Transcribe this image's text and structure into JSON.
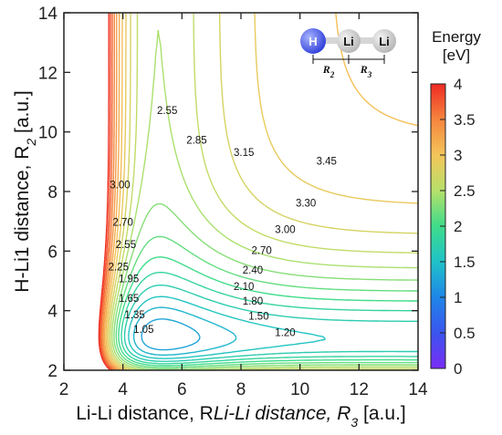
{
  "chart_data": {
    "type": "contour",
    "xlabel": "Li-Li distance, R",
    "xlabel_sub": "3",
    "xlabel_unit": " [a.u.]",
    "ylabel": "H-Li1 distance, R",
    "ylabel_sub": "2",
    "ylabel_unit": " [a.u.]",
    "xlim": [
      2,
      14
    ],
    "ylim": [
      2,
      14
    ],
    "x_ticks": [
      "2",
      "4",
      "6",
      "8",
      "10",
      "12",
      "14"
    ],
    "y_ticks": [
      "2",
      "4",
      "6",
      "8",
      "10",
      "12",
      "14"
    ],
    "colorbar": {
      "title_line1": "Energy",
      "title_line2": "[eV]",
      "range": [
        0,
        4
      ],
      "ticks": [
        "0",
        "0.5",
        "1",
        "1.5",
        "2",
        "2.5",
        "3",
        "3.5",
        "4"
      ]
    },
    "minimum": {
      "x": 6.2,
      "y": 3.05,
      "value": 0.9
    },
    "contour_labels": [
      {
        "text": "1.05",
        "x": 4.7,
        "y": 3.25
      },
      {
        "text": "1.35",
        "x": 4.4,
        "y": 3.75
      },
      {
        "text": "1.65",
        "x": 4.2,
        "y": 4.3
      },
      {
        "text": "1.95",
        "x": 4.2,
        "y": 4.95
      },
      {
        "text": "2.25",
        "x": 3.85,
        "y": 5.35
      },
      {
        "text": "2.55",
        "x": 4.1,
        "y": 6.1
      },
      {
        "text": "2.70",
        "x": 4.0,
        "y": 6.85
      },
      {
        "text": "3.00",
        "x": 3.9,
        "y": 8.1
      },
      {
        "text": "2.55",
        "x": 5.5,
        "y": 10.6
      },
      {
        "text": "2.85",
        "x": 6.5,
        "y": 9.6
      },
      {
        "text": "3.15",
        "x": 8.1,
        "y": 9.2
      },
      {
        "text": "3.45",
        "x": 10.9,
        "y": 8.9
      },
      {
        "text": "3.30",
        "x": 10.2,
        "y": 7.5
      },
      {
        "text": "3.00",
        "x": 9.5,
        "y": 6.6
      },
      {
        "text": "2.70",
        "x": 8.7,
        "y": 5.9
      },
      {
        "text": "2.40",
        "x": 8.4,
        "y": 5.25
      },
      {
        "text": "2.10",
        "x": 8.1,
        "y": 4.7
      },
      {
        "text": "1.80",
        "x": 8.4,
        "y": 4.2
      },
      {
        "text": "1.50",
        "x": 8.6,
        "y": 3.7
      },
      {
        "text": "1.20",
        "x": 9.5,
        "y": 3.15
      }
    ],
    "inset": {
      "atoms": [
        "H",
        "Li",
        "Li"
      ],
      "dimensions": [
        "R",
        "R"
      ],
      "dimension_subs": [
        "2",
        "3"
      ]
    }
  }
}
